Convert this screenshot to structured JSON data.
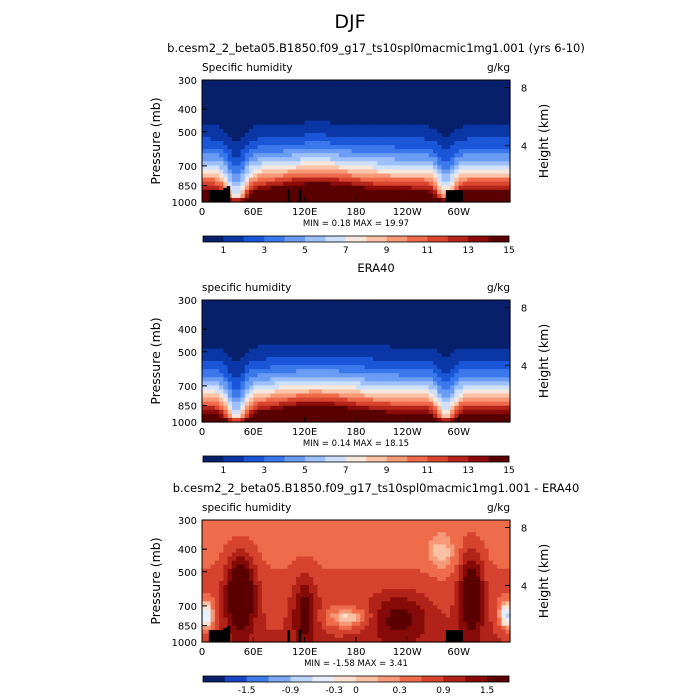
{
  "figure": {
    "title": "DJF"
  },
  "colors": {
    "levels_abs": [
      "#08206b",
      "#0b37a6",
      "#1a56d8",
      "#3a78ec",
      "#6a9cf4",
      "#9ec0fa",
      "#cfe0fd",
      "#f7e7dd",
      "#fbc3a8",
      "#f79876",
      "#ee6a4b",
      "#d9452f",
      "#b5251a",
      "#8d0c0a",
      "#5a0000"
    ],
    "levels_diff": [
      "#08206b",
      "#1a46c6",
      "#3f7be6",
      "#7ea8f3",
      "#bcd3fb",
      "#e8f0fe",
      "#fde2d3",
      "#fbc1a5",
      "#f69978",
      "#ee6b4b",
      "#d6432e",
      "#b12318",
      "#860a08",
      "#5a0000"
    ]
  },
  "chart_data": [
    {
      "type": "heatmap",
      "title": "b.cesm2_2_beta05.B1850.f09_g17_ts10spl0macmic1mg1.001 (yrs 6-10)",
      "left_label": "Specific humidity",
      "units": "g/kg",
      "ylabel": "Pressure (mb)",
      "ylabel_right": "Height (km)",
      "xticks": [
        "0",
        "60E",
        "120E",
        "180",
        "120W",
        "60W"
      ],
      "xtick_values": [
        0,
        60,
        120,
        180,
        240,
        300
      ],
      "xlim": [
        0,
        360
      ],
      "yticks": [
        "300",
        "400",
        "500",
        "700",
        "850",
        "1000"
      ],
      "ytick_values": [
        300,
        400,
        500,
        700,
        850,
        1000
      ],
      "ylim": [
        1000,
        300
      ],
      "yscale": "log",
      "right_ticks": [
        "8",
        "4"
      ],
      "right_tick_values": [
        8,
        4
      ],
      "stats": "MIN =    0.18   MAX =   19.97",
      "min": 0.18,
      "max": 19.97,
      "colorbar_labels": [
        "1",
        "3",
        "5",
        "7",
        "9",
        "11",
        "13",
        "15"
      ],
      "colorbar_values": [
        1,
        3,
        5,
        7,
        9,
        11,
        13,
        15
      ],
      "colorbar_levels": [
        0,
        1,
        2,
        3,
        4,
        5,
        6,
        7,
        8,
        9,
        10,
        11,
        12,
        13,
        14,
        15
      ],
      "terrain": true
    },
    {
      "type": "heatmap",
      "title": "ERA40",
      "left_label": "specific humidity",
      "units": "g/kg",
      "ylabel": "Pressure (mb)",
      "ylabel_right": "Height (km)",
      "xticks": [
        "0",
        "60E",
        "120E",
        "180",
        "120W",
        "60W"
      ],
      "xtick_values": [
        0,
        60,
        120,
        180,
        240,
        300
      ],
      "xlim": [
        0,
        360
      ],
      "yticks": [
        "300",
        "400",
        "500",
        "700",
        "850",
        "1000"
      ],
      "ytick_values": [
        300,
        400,
        500,
        700,
        850,
        1000
      ],
      "ylim": [
        1000,
        300
      ],
      "yscale": "log",
      "right_ticks": [
        "8",
        "4"
      ],
      "right_tick_values": [
        8,
        4
      ],
      "stats": "MIN =    0.14   MAX =   18.15",
      "min": 0.14,
      "max": 18.15,
      "colorbar_labels": [
        "1",
        "3",
        "5",
        "7",
        "9",
        "11",
        "13",
        "15"
      ],
      "colorbar_values": [
        1,
        3,
        5,
        7,
        9,
        11,
        13,
        15
      ],
      "colorbar_levels": [
        0,
        1,
        2,
        3,
        4,
        5,
        6,
        7,
        8,
        9,
        10,
        11,
        12,
        13,
        14,
        15
      ],
      "terrain": false
    },
    {
      "type": "heatmap",
      "title": "b.cesm2_2_beta05.B1850.f09_g17_ts10spl0macmic1mg1.001 - ERA40",
      "left_label": "specific humidity",
      "units": "g/kg",
      "ylabel": "Pressure (mb)",
      "ylabel_right": "Height (km)",
      "xticks": [
        "0",
        "60E",
        "120E",
        "180",
        "120W",
        "60W"
      ],
      "xtick_values": [
        0,
        60,
        120,
        180,
        240,
        300
      ],
      "xlim": [
        0,
        360
      ],
      "yticks": [
        "300",
        "400",
        "500",
        "700",
        "850",
        "1000"
      ],
      "ytick_values": [
        300,
        400,
        500,
        700,
        850,
        1000
      ],
      "ylim": [
        1000,
        300
      ],
      "yscale": "log",
      "right_ticks": [
        "8",
        "4"
      ],
      "right_tick_values": [
        8,
        4
      ],
      "stats": "MIN =   -1.58   MAX =     3.41",
      "min": -1.58,
      "max": 3.41,
      "colorbar_labels": [
        "-1.5",
        "-0.9",
        "-0.3",
        "0",
        "0.3",
        "0.9",
        "1.5"
      ],
      "colorbar_values": [
        -1.5,
        -0.9,
        -0.3,
        0,
        0.3,
        0.9,
        1.5
      ],
      "colorbar_levels": [
        -2.1,
        -1.8,
        -1.5,
        -1.2,
        -0.9,
        -0.6,
        -0.3,
        0,
        0.15,
        0.3,
        0.6,
        0.9,
        1.2,
        1.5,
        1.8
      ],
      "terrain": true
    }
  ]
}
